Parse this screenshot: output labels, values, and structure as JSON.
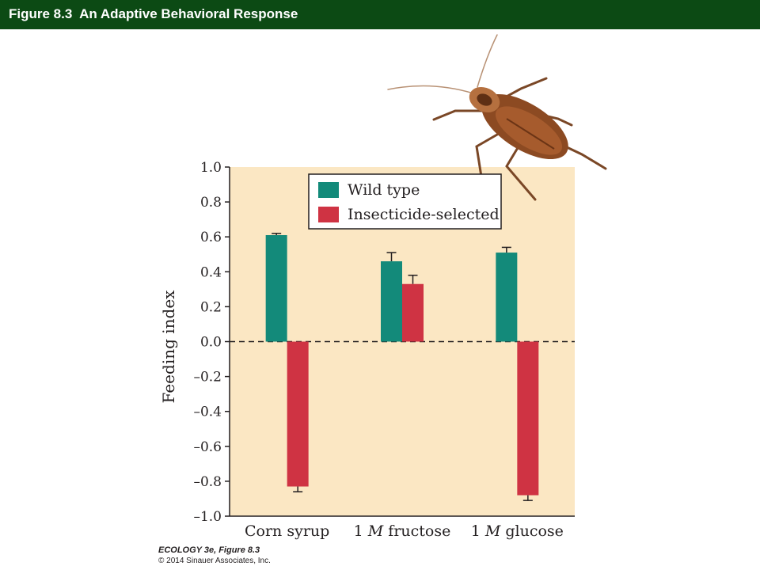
{
  "header": {
    "title": "Figure 8.3  An Adaptive Behavioral Response"
  },
  "colors": {
    "title_bar": "#0c4a14",
    "plot_background": "#fbe7c3",
    "wild_type": "#138a7a",
    "insecticide_selected": "#cf3343"
  },
  "chart_data": {
    "type": "bar",
    "title": "",
    "xlabel": "",
    "ylabel": "Feeding index",
    "ylim": [
      -1.0,
      1.0
    ],
    "yticks": [
      "1.0",
      "0.8",
      "0.6",
      "0.4",
      "0.2",
      "0.0",
      "–0.2",
      "–0.4",
      "–0.6",
      "–0.8",
      "–1.0"
    ],
    "categories": [
      {
        "number": "",
        "molar": "",
        "name": "Corn syrup"
      },
      {
        "number": "1 ",
        "molar": "M",
        "name": " fructose"
      },
      {
        "number": "1 ",
        "molar": "M",
        "name": " glucose"
      }
    ],
    "series": [
      {
        "name": "Wild type",
        "values": [
          0.61,
          0.46,
          0.51
        ],
        "errors": [
          0.01,
          0.05,
          0.03
        ]
      },
      {
        "name": "Insecticide-selected",
        "values": [
          -0.83,
          0.33,
          -0.88
        ],
        "errors": [
          0.03,
          0.05,
          0.03
        ]
      }
    ],
    "reference_line": 0.0,
    "legend_position": "top-center",
    "grid": false
  },
  "illustration": {
    "icon": "cockroach-icon"
  },
  "credit": {
    "line1": "ECOLOGY 3e, Figure 8.3",
    "line2": "© 2014 Sinauer Associates, Inc."
  }
}
